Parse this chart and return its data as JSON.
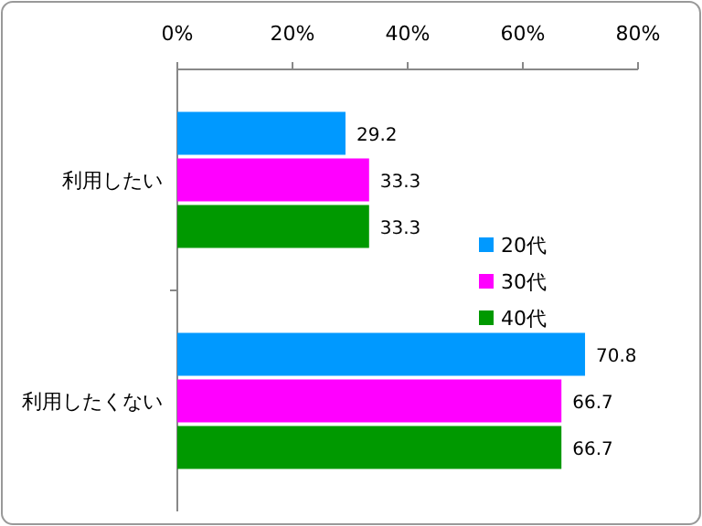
{
  "chart_data": {
    "type": "bar",
    "orientation": "horizontal",
    "categories": [
      "利用したい",
      "利用したくない"
    ],
    "series": [
      {
        "name": "20代",
        "color": "#0099ff",
        "values": [
          29.2,
          70.8
        ]
      },
      {
        "name": "30代",
        "color": "#ff00ff",
        "values": [
          33.3,
          66.7
        ]
      },
      {
        "name": "40代",
        "color": "#009900",
        "values": [
          33.3,
          66.7
        ]
      }
    ],
    "xlim": [
      0,
      80
    ],
    "xticks": [
      {
        "value": 0,
        "label": "0%"
      },
      {
        "value": 20,
        "label": "20%"
      },
      {
        "value": 40,
        "label": "40%"
      },
      {
        "value": 60,
        "label": "60%"
      },
      {
        "value": 80,
        "label": "80%"
      }
    ],
    "data_labels": true,
    "legend": "right",
    "grid": false
  }
}
